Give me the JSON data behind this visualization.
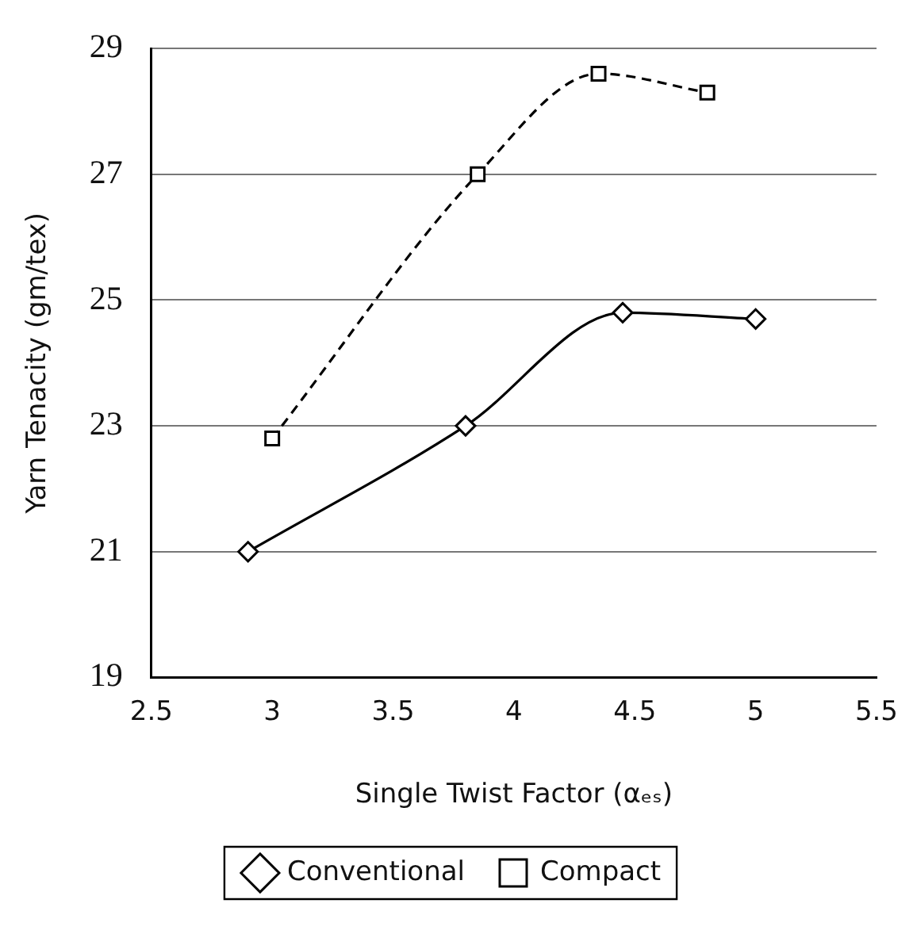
{
  "chart_data": {
    "type": "line",
    "xlabel": "Single Twist Factor (αₑₛ)",
    "ylabel": "Yarn Tenacity (gm/tex)",
    "xlim": [
      2.5,
      5.5
    ],
    "xticks": [
      2.5,
      3,
      3.5,
      4,
      4.5,
      5,
      5.5
    ],
    "ylim": [
      19,
      29
    ],
    "yticks": [
      19,
      21,
      23,
      25,
      27,
      29
    ],
    "grid": "y",
    "legend": "bottom",
    "series": [
      {
        "name": "Conventional",
        "color": "#000000",
        "marker": "diamond",
        "line_style": "solid",
        "x": [
          2.9,
          3.8,
          4.45,
          5.0
        ],
        "values": [
          21.0,
          23.0,
          24.8,
          24.7
        ]
      },
      {
        "name": "Compact",
        "color": "#000000",
        "marker": "square",
        "line_style": "dashed",
        "x": [
          3.0,
          3.85,
          4.35,
          4.8
        ],
        "values": [
          22.8,
          27.0,
          28.6,
          28.3
        ]
      }
    ]
  }
}
